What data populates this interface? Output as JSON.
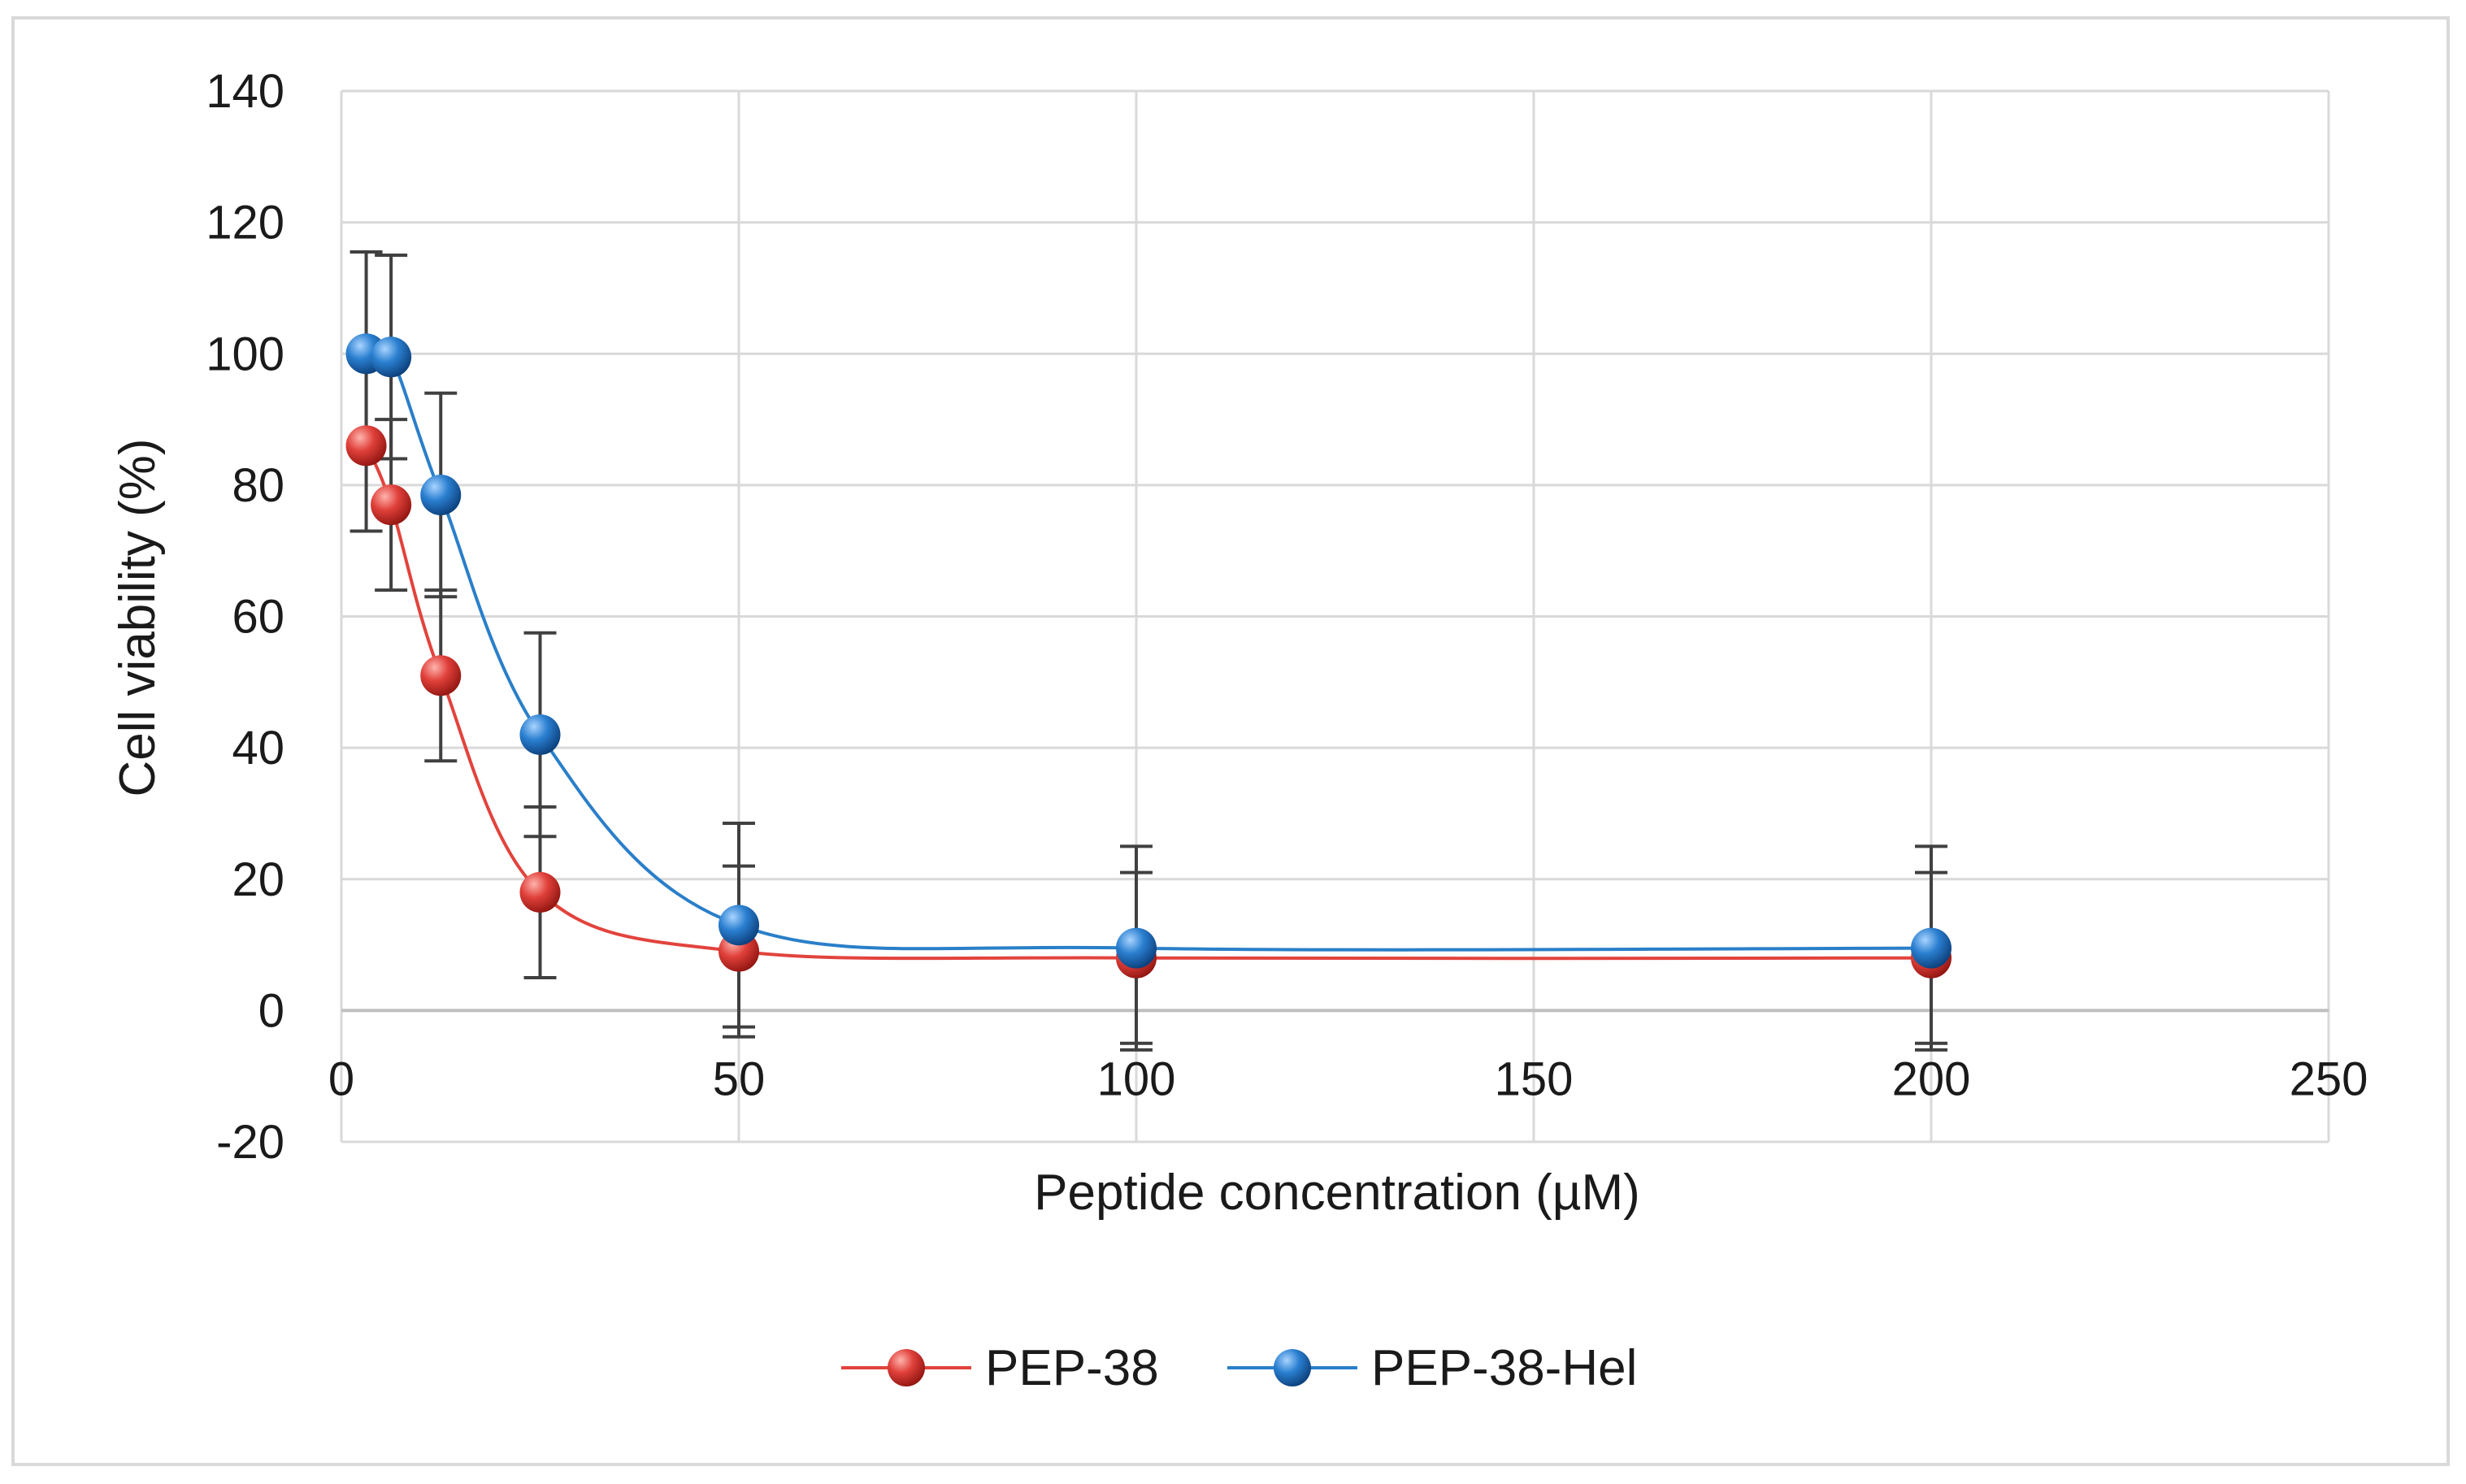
{
  "chart_data": {
    "type": "scatter",
    "title": "",
    "xlabel": "Peptide concentration (µM)",
    "ylabel": "Cell viability (%)",
    "xlim": [
      0,
      250
    ],
    "ylim": [
      -20,
      140
    ],
    "x_ticks": [
      0,
      50,
      100,
      150,
      200,
      250
    ],
    "y_ticks": [
      -20,
      0,
      20,
      40,
      60,
      80,
      100,
      120,
      140
    ],
    "grid": true,
    "legend_position": "bottom",
    "smooth_lines": true,
    "series": [
      {
        "name": "PEP-38",
        "color": "#d9302b",
        "line_color": "#e2433d",
        "x": [
          3.125,
          6.25,
          12.5,
          25,
          50,
          100,
          200
        ],
        "y": [
          86,
          77,
          51,
          18,
          9,
          8,
          8
        ],
        "err": [
          13,
          13,
          13,
          13,
          13,
          13,
          13
        ]
      },
      {
        "name": "PEP-38-Hel",
        "color": "#1f6fbf",
        "line_color": "#2a7fc9",
        "x": [
          3.125,
          6.25,
          12.5,
          25,
          50,
          100,
          200
        ],
        "y": [
          100,
          99.5,
          78.5,
          42,
          13,
          9.5,
          9.5
        ],
        "err": [
          15.5,
          15.5,
          15.5,
          15.5,
          15.5,
          15.5,
          15.5
        ]
      }
    ]
  }
}
